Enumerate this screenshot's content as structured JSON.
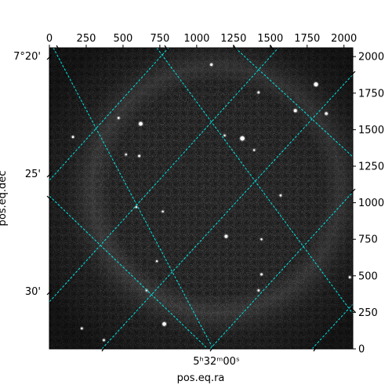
{
  "chart_data": {
    "type": "image",
    "xlabel": "pos.eq.ra",
    "ylabel": "pos.eq.dec",
    "pixel_axes": {
      "x_ticks": [
        0,
        250,
        500,
        750,
        1000,
        1250,
        1500,
        1750,
        2000
      ],
      "y_ticks": [
        0,
        250,
        500,
        750,
        1000,
        1250,
        1500,
        1750,
        2000
      ],
      "xlim": [
        0,
        2060
      ],
      "ylim": [
        0,
        2060
      ]
    },
    "world_axes": {
      "ra_tick_labels": [
        "5ʰ32ᵐ00ˢ"
      ],
      "dec_tick_labels": [
        "7°20'",
        "25'",
        "30'"
      ]
    },
    "grid": true,
    "grid_color": "#00e5e5",
    "image_colormap": "gray",
    "image_background": "#1a1a1a",
    "stars": [
      {
        "x": 1100,
        "y": 1945,
        "r": 1.6
      },
      {
        "x": 1420,
        "y": 1755,
        "r": 1.4
      },
      {
        "x": 1810,
        "y": 1810,
        "r": 2.6
      },
      {
        "x": 1670,
        "y": 1630,
        "r": 2.0
      },
      {
        "x": 1880,
        "y": 1610,
        "r": 1.8
      },
      {
        "x": 620,
        "y": 1540,
        "r": 2.4
      },
      {
        "x": 470,
        "y": 1580,
        "r": 1.3
      },
      {
        "x": 1310,
        "y": 1440,
        "r": 2.8
      },
      {
        "x": 1190,
        "y": 1460,
        "r": 1.2
      },
      {
        "x": 1390,
        "y": 1360,
        "r": 1.2
      },
      {
        "x": 160,
        "y": 1450,
        "r": 1.4
      },
      {
        "x": 610,
        "y": 1320,
        "r": 1.4
      },
      {
        "x": 520,
        "y": 1330,
        "r": 1.2
      },
      {
        "x": 1570,
        "y": 1050,
        "r": 1.3
      },
      {
        "x": 770,
        "y": 940,
        "r": 1.2
      },
      {
        "x": 590,
        "y": 970,
        "r": 1.2
      },
      {
        "x": 1200,
        "y": 770,
        "r": 2.0
      },
      {
        "x": 1440,
        "y": 750,
        "r": 1.2
      },
      {
        "x": 730,
        "y": 600,
        "r": 1.2
      },
      {
        "x": 1440,
        "y": 510,
        "r": 1.4
      },
      {
        "x": 1420,
        "y": 400,
        "r": 1.3
      },
      {
        "x": 660,
        "y": 400,
        "r": 1.2
      },
      {
        "x": 780,
        "y": 170,
        "r": 2.4
      },
      {
        "x": 220,
        "y": 140,
        "r": 1.3
      },
      {
        "x": 370,
        "y": 60,
        "r": 1.3
      },
      {
        "x": 2040,
        "y": 490,
        "r": 1.4
      }
    ]
  }
}
